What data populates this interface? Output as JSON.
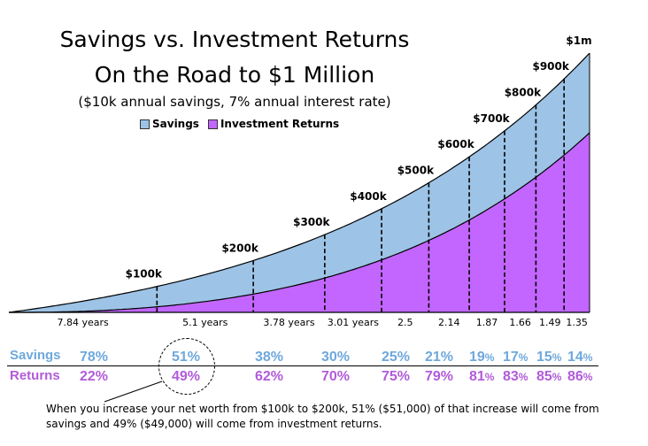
{
  "chart_data": {
    "type": "area",
    "title": "Savings vs. Investment Returns",
    "subtitle_line2": "On the Road to $1 Million",
    "subtitle": "($10k annual savings, 7% annual interest rate)",
    "legend": [
      "Savings",
      "Investment Returns"
    ],
    "legend_placement": "top-left",
    "x_unit": "years",
    "milestones": [
      {
        "label": "$100k",
        "year": 7.84
      },
      {
        "label": "$200k",
        "year": 12.94
      },
      {
        "label": "$300k",
        "year": 16.72
      },
      {
        "label": "$400k",
        "year": 19.73
      },
      {
        "label": "$500k",
        "year": 22.23
      },
      {
        "label": "$600k",
        "year": 24.37
      },
      {
        "label": "$700k",
        "year": 26.24
      },
      {
        "label": "$800k",
        "year": 27.9
      },
      {
        "label": "$900k",
        "year": 29.39
      },
      {
        "label": "$1m",
        "year": 30.74
      }
    ],
    "interval_labels": [
      "7.84 years",
      "5.1 years",
      "3.78 years",
      "3.01 years",
      "2.5",
      "2.14",
      "1.87",
      "1.66",
      "1.49",
      "1.35"
    ],
    "series": [
      {
        "name": "Savings",
        "color": "#9dc3e6",
        "values": [
          78,
          51,
          38,
          30,
          25,
          21,
          19,
          17,
          15,
          14
        ]
      },
      {
        "name": "Investment Returns",
        "color": "#c266ff",
        "values": [
          22,
          49,
          62,
          70,
          75,
          79,
          81,
          83,
          85,
          86
        ]
      }
    ],
    "grid": false
  },
  "table": {
    "savings_label": "Savings",
    "returns_label": "Returns",
    "savings_color": "#6fa8dc",
    "returns_color": "#b25bd9",
    "savings": [
      "78%",
      "51%",
      "38%",
      "30%",
      "25%",
      "21%",
      "19",
      "17",
      "15",
      "14"
    ],
    "returns": [
      "22%",
      "49%",
      "62%",
      "70%",
      "75%",
      "79%",
      "81",
      "83",
      "85",
      "86"
    ],
    "small_suffix": "%"
  },
  "footnote": "When you increase your net worth from $100k to $200k, 51% ($51,000) of that increase will come from savings and 49% ($49,000) will come from investment returns."
}
